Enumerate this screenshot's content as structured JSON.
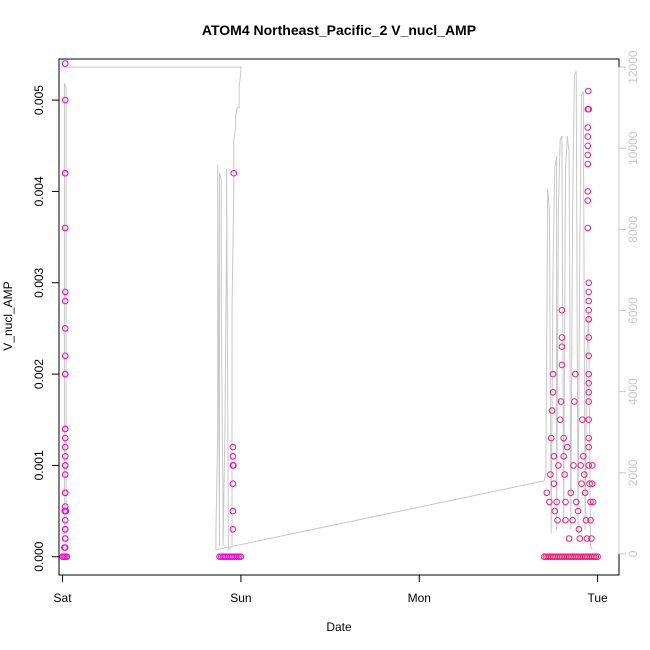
{
  "chart_data": {
    "type": "scatter",
    "title": "ATOM4 Northeast_Pacific_2 V_nucl_AMP",
    "xlabel": "Date",
    "ylabel": "V_nucl_AMP",
    "x_ticks": [
      "Sat",
      "Sun",
      "Mon",
      "Tue"
    ],
    "xlim": [
      -0.02,
      3.12
    ],
    "ylim": [
      -0.0002,
      0.00545
    ],
    "y_ticks": [
      "0.000",
      "0.001",
      "0.002",
      "0.003",
      "0.004",
      "0.005"
    ],
    "y_tick_values": [
      0,
      0.001,
      0.002,
      0.003,
      0.004,
      0.005
    ],
    "y2lim": [
      -520,
      12200
    ],
    "y2_ticks": [
      "0",
      "2000",
      "4000",
      "6000",
      "8000",
      "10000",
      "12000"
    ],
    "y2_tick_values": [
      0,
      2000,
      4000,
      6000,
      8000,
      10000,
      12000
    ],
    "grid": false,
    "colors": {
      "points_primary": "#ff00cc",
      "points_secondary": "#ff1a75",
      "line": "#c8c8c8",
      "axis": "#000000",
      "axis_right": "#c8c8c8"
    },
    "series": [
      {
        "type": "scatter",
        "axis": "left",
        "points": [
          [
            0.015,
            0.0054
          ],
          [
            0.015,
            0.005
          ],
          [
            0.015,
            0.0042
          ],
          [
            0.015,
            0.0042
          ],
          [
            0.015,
            0.0036
          ],
          [
            0.015,
            0.0029
          ],
          [
            0.015,
            0.0028
          ],
          [
            0.015,
            0.0025
          ],
          [
            0.015,
            0.0022
          ],
          [
            0.015,
            0.002
          ],
          [
            0.015,
            0.002
          ],
          [
            0.015,
            0.0014
          ],
          [
            0.015,
            0.0014
          ],
          [
            0.015,
            0.0013
          ],
          [
            0.015,
            0.0012
          ],
          [
            0.015,
            0.0011
          ],
          [
            0.015,
            0.001
          ],
          [
            0.015,
            0.001
          ],
          [
            0.015,
            0.0009
          ],
          [
            0.015,
            0.0007
          ],
          [
            0.015,
            0.0007
          ],
          [
            0.012,
            0.0005
          ],
          [
            0.018,
            0.0005
          ],
          [
            0.015,
            0.00055
          ],
          [
            0.015,
            0.0004
          ],
          [
            0.015,
            0.0003
          ],
          [
            0.015,
            0.0003
          ],
          [
            0.015,
            0.0002
          ],
          [
            0.015,
            0.0002
          ],
          [
            0.01,
            0.0001
          ],
          [
            0.015,
            0.0001
          ],
          [
            0.0,
            0.0
          ],
          [
            0.008,
            0.0
          ],
          [
            0.016,
            0.0
          ],
          [
            0.024,
            0.0
          ],
          [
            0.96,
            0.0042
          ],
          [
            0.955,
            0.0012
          ],
          [
            0.955,
            0.0011
          ],
          [
            0.955,
            0.001
          ],
          [
            0.958,
            0.001
          ],
          [
            0.955,
            0.0008
          ],
          [
            0.955,
            0.0005
          ],
          [
            0.955,
            0.0003
          ],
          [
            0.88,
            0.0
          ],
          [
            0.89,
            0.0
          ],
          [
            0.9,
            0.0
          ],
          [
            0.91,
            0.0
          ],
          [
            0.92,
            0.0
          ],
          [
            0.93,
            0.0
          ],
          [
            0.94,
            0.0
          ],
          [
            0.95,
            0.0
          ],
          [
            0.96,
            0.0
          ],
          [
            0.97,
            0.0
          ],
          [
            0.98,
            0.0
          ],
          [
            0.99,
            0.0
          ],
          [
            1.0,
            0.0
          ]
        ]
      },
      {
        "type": "scatter",
        "axis": "left",
        "points": [
          [
            2.7,
            0.0
          ],
          [
            2.71,
            0.0
          ],
          [
            2.72,
            0.0
          ],
          [
            2.73,
            0.0
          ],
          [
            2.74,
            0.0
          ],
          [
            2.75,
            0.0
          ],
          [
            2.76,
            0.0
          ],
          [
            2.77,
            0.0
          ],
          [
            2.78,
            0.0
          ],
          [
            2.79,
            0.0
          ],
          [
            2.8,
            0.0
          ],
          [
            2.81,
            0.0
          ],
          [
            2.82,
            0.0
          ],
          [
            2.83,
            0.0
          ],
          [
            2.84,
            0.0
          ],
          [
            2.85,
            0.0
          ],
          [
            2.86,
            0.0
          ],
          [
            2.87,
            0.0
          ],
          [
            2.88,
            0.0
          ],
          [
            2.89,
            0.0
          ],
          [
            2.9,
            0.0
          ],
          [
            2.91,
            0.0
          ],
          [
            2.92,
            0.0
          ],
          [
            2.93,
            0.0
          ],
          [
            2.94,
            0.0
          ],
          [
            2.95,
            0.0
          ],
          [
            2.96,
            0.0
          ],
          [
            2.97,
            0.0
          ],
          [
            2.98,
            0.0
          ],
          [
            2.99,
            0.0
          ],
          [
            3.0,
            0.0
          ],
          [
            2.715,
            0.0007
          ],
          [
            2.73,
            0.0006
          ],
          [
            2.735,
            0.0009
          ],
          [
            2.74,
            0.0013
          ],
          [
            2.745,
            0.0016
          ],
          [
            2.75,
            0.0018
          ],
          [
            2.75,
            0.002
          ],
          [
            2.755,
            0.0011
          ],
          [
            2.755,
            0.0008
          ],
          [
            2.76,
            0.0005
          ],
          [
            2.77,
            0.0006
          ],
          [
            2.775,
            0.0004
          ],
          [
            2.78,
            0.001
          ],
          [
            2.79,
            0.0015
          ],
          [
            2.795,
            0.0017
          ],
          [
            2.8,
            0.0027
          ],
          [
            2.8,
            0.0024
          ],
          [
            2.8,
            0.0023
          ],
          [
            2.8,
            0.0021
          ],
          [
            2.81,
            0.0013
          ],
          [
            2.81,
            0.0011
          ],
          [
            2.815,
            0.0009
          ],
          [
            2.82,
            0.0006
          ],
          [
            2.82,
            0.0004
          ],
          [
            2.83,
            0.0012
          ],
          [
            2.84,
            0.0002
          ],
          [
            2.85,
            0.0007
          ],
          [
            2.86,
            0.0004
          ],
          [
            2.865,
            0.001
          ],
          [
            2.87,
            0.0017
          ],
          [
            2.875,
            0.002
          ],
          [
            2.88,
            0.0006
          ],
          [
            2.89,
            0.0005
          ],
          [
            2.895,
            0.0003
          ],
          [
            2.9,
            0.0002
          ],
          [
            2.905,
            0.001
          ],
          [
            2.91,
            0.0008
          ],
          [
            2.915,
            0.0015
          ],
          [
            2.92,
            0.0011
          ],
          [
            2.925,
            0.0009
          ],
          [
            2.93,
            0.0007
          ],
          [
            2.935,
            0.0004
          ],
          [
            2.94,
            0.0002
          ],
          [
            2.945,
            0.0049
          ],
          [
            2.945,
            0.0047
          ],
          [
            2.945,
            0.0046
          ],
          [
            2.945,
            0.0045
          ],
          [
            2.945,
            0.0044
          ],
          [
            2.945,
            0.0043
          ],
          [
            2.945,
            0.004
          ],
          [
            2.945,
            0.0039
          ],
          [
            2.945,
            0.0036
          ],
          [
            2.948,
            0.0051
          ],
          [
            2.95,
            0.0049
          ],
          [
            2.95,
            0.003
          ],
          [
            2.95,
            0.0029
          ],
          [
            2.95,
            0.0028
          ],
          [
            2.95,
            0.0027
          ],
          [
            2.95,
            0.0026
          ],
          [
            2.95,
            0.0026
          ],
          [
            2.95,
            0.0024
          ],
          [
            2.95,
            0.0022
          ],
          [
            2.95,
            0.002
          ],
          [
            2.95,
            0.0019
          ],
          [
            2.95,
            0.0018
          ],
          [
            2.95,
            0.0017
          ],
          [
            2.95,
            0.0015
          ],
          [
            2.95,
            0.0013
          ],
          [
            2.95,
            0.0012
          ],
          [
            2.95,
            0.001
          ],
          [
            2.955,
            0.0008
          ],
          [
            2.96,
            0.0006
          ],
          [
            2.96,
            0.0004
          ],
          [
            2.965,
            0.0002
          ],
          [
            2.97,
            0.001
          ],
          [
            2.97,
            0.0008
          ],
          [
            2.975,
            0.0006
          ]
        ]
      },
      {
        "type": "line",
        "axis": "right",
        "points": [
          [
            0.0,
            12000
          ],
          [
            1.0,
            12000
          ],
          [
            1.0,
            11900
          ],
          [
            0.99,
            11500
          ],
          [
            0.99,
            11000
          ],
          [
            0.98,
            11000
          ],
          [
            0.97,
            10800
          ],
          [
            0.97,
            10500
          ],
          [
            0.96,
            10200
          ],
          [
            0.96,
            9000
          ],
          [
            0.95,
            6000
          ],
          [
            0.95,
            3000
          ],
          [
            0.95,
            200
          ],
          [
            0.93,
            100
          ],
          [
            0.92,
            9500
          ],
          [
            0.92,
            8000
          ],
          [
            0.91,
            3000
          ],
          [
            0.9,
            200
          ],
          [
            0.9,
            800
          ],
          [
            0.89,
            6000
          ],
          [
            0.89,
            9200
          ],
          [
            0.88,
            9400
          ],
          [
            0.88,
            3000
          ],
          [
            0.88,
            200
          ],
          [
            0.87,
            9600
          ],
          [
            0.87,
            3000
          ],
          [
            0.86,
            500
          ],
          [
            0.86,
            100
          ],
          [
            2.7,
            1800
          ],
          [
            2.71,
            2000
          ],
          [
            2.72,
            9000
          ],
          [
            2.73,
            8500
          ],
          [
            2.74,
            500
          ],
          [
            2.75,
            7000
          ],
          [
            2.76,
            9500
          ],
          [
            2.77,
            9800
          ],
          [
            2.77,
            600
          ],
          [
            2.78,
            8500
          ],
          [
            2.79,
            10200
          ],
          [
            2.8,
            10300
          ],
          [
            2.81,
            800
          ],
          [
            2.82,
            9500
          ],
          [
            2.83,
            10300
          ],
          [
            2.84,
            9900
          ],
          [
            2.85,
            600
          ],
          [
            2.86,
            8500
          ],
          [
            2.87,
            11800
          ],
          [
            2.88,
            11900
          ],
          [
            2.89,
            500
          ],
          [
            2.9,
            7500
          ],
          [
            2.91,
            11300
          ],
          [
            2.92,
            11400
          ],
          [
            2.93,
            600
          ],
          [
            2.94,
            5000
          ],
          [
            2.95,
            6000
          ],
          [
            2.96,
            200
          ],
          [
            2.97,
            100
          ]
        ]
      },
      {
        "type": "line",
        "axis": "right",
        "points": [
          [
            0.0,
            500
          ],
          [
            0.01,
            500
          ],
          [
            0.01,
            1600
          ],
          [
            0.01,
            11600
          ],
          [
            0.02,
            11500
          ],
          [
            0.02,
            11200
          ],
          [
            0.02,
            9000
          ],
          [
            0.02,
            6000
          ],
          [
            0.02,
            4000
          ],
          [
            0.02,
            2000
          ],
          [
            0.02,
            800
          ],
          [
            0.02,
            500
          ]
        ]
      }
    ]
  }
}
